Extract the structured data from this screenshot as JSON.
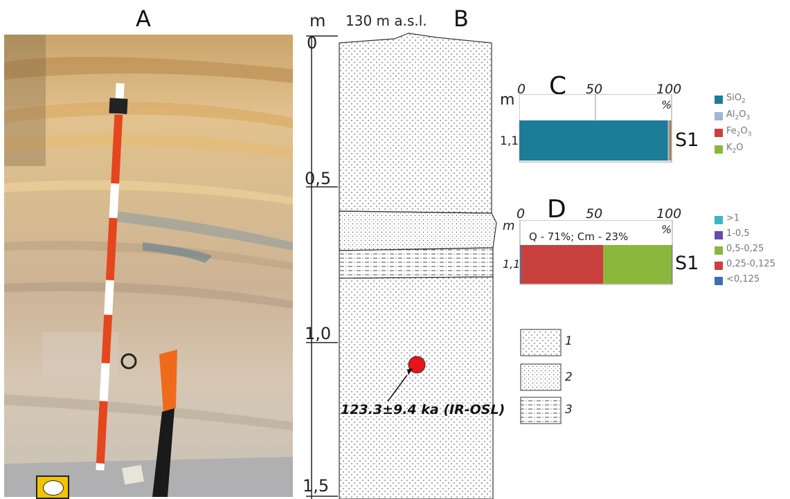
{
  "panels": {
    "a": "A",
    "b": "B",
    "c": "C",
    "d": "D"
  },
  "photo": {
    "colors": {
      "sand": "#d9b986",
      "pole_red": "#e4461e",
      "pole_white": "#ffffff",
      "shovel_orange": "#f06a1c",
      "shovel_black": "#1a1a1a"
    }
  },
  "column": {
    "unit": "m",
    "elevation_label": "130 m a.s.l.",
    "depth_ticks": [
      "0",
      "0,5",
      "1,0",
      "1,5"
    ],
    "sample_depth_m": 1.1,
    "sample_color": "#e8141b",
    "date_label": "123.3±9.4 ka (IR-OSL)"
  },
  "chart_data": [
    {
      "type": "bar",
      "panel": "C",
      "xlabel_unit": "%",
      "ylabel_unit": "m",
      "xticks": [
        "0",
        "50",
        "100"
      ],
      "xlim": [
        0,
        100
      ],
      "sample": {
        "name": "S1",
        "depth": "1,1"
      },
      "series": [
        {
          "name": "SiO2",
          "label_main": "SiO",
          "label_sub": "2",
          "value": 97.5,
          "color": "#1d7c98"
        },
        {
          "name": "Al2O3",
          "label_main": "Al",
          "label_sub": "2",
          "label_main2": "O",
          "label_sub2": "3",
          "value": 1.2,
          "color": "#9fb7d4"
        },
        {
          "name": "Fe2O3",
          "label_main": "Fe",
          "label_sub": "2",
          "label_main2": "O",
          "label_sub2": "3",
          "value": 0.7,
          "color": "#c8413f"
        },
        {
          "name": "K2O",
          "label_main": "K",
          "label_sub": "2",
          "label_main2": "O",
          "label_sub2": "",
          "value": 0.6,
          "color": "#8bb73d"
        }
      ]
    },
    {
      "type": "bar",
      "panel": "D",
      "xlabel_unit": "%",
      "ylabel_unit": "m",
      "xticks": [
        "0",
        "50",
        "100"
      ],
      "xlim": [
        0,
        100
      ],
      "sample": {
        "name": "S1",
        "depth": "1,1"
      },
      "annotation": "Q - 71%; Cm - 23%",
      "series": [
        {
          "name": ">1",
          "value": 0,
          "color": "#3cb6c8"
        },
        {
          "name": "1-0,5",
          "value": 0.3,
          "color": "#6b4ba6"
        },
        {
          "name": "0,5-0,25",
          "value": 45,
          "color": "#8bb73d"
        },
        {
          "name": "0,25-0,125",
          "value": 54,
          "color": "#c8413f"
        },
        {
          "name": "<0,125",
          "value": 0.7,
          "color": "#3a6fb0"
        }
      ]
    }
  ],
  "lithology_legend": [
    {
      "label": "1"
    },
    {
      "label": "2"
    },
    {
      "label": "3"
    }
  ]
}
